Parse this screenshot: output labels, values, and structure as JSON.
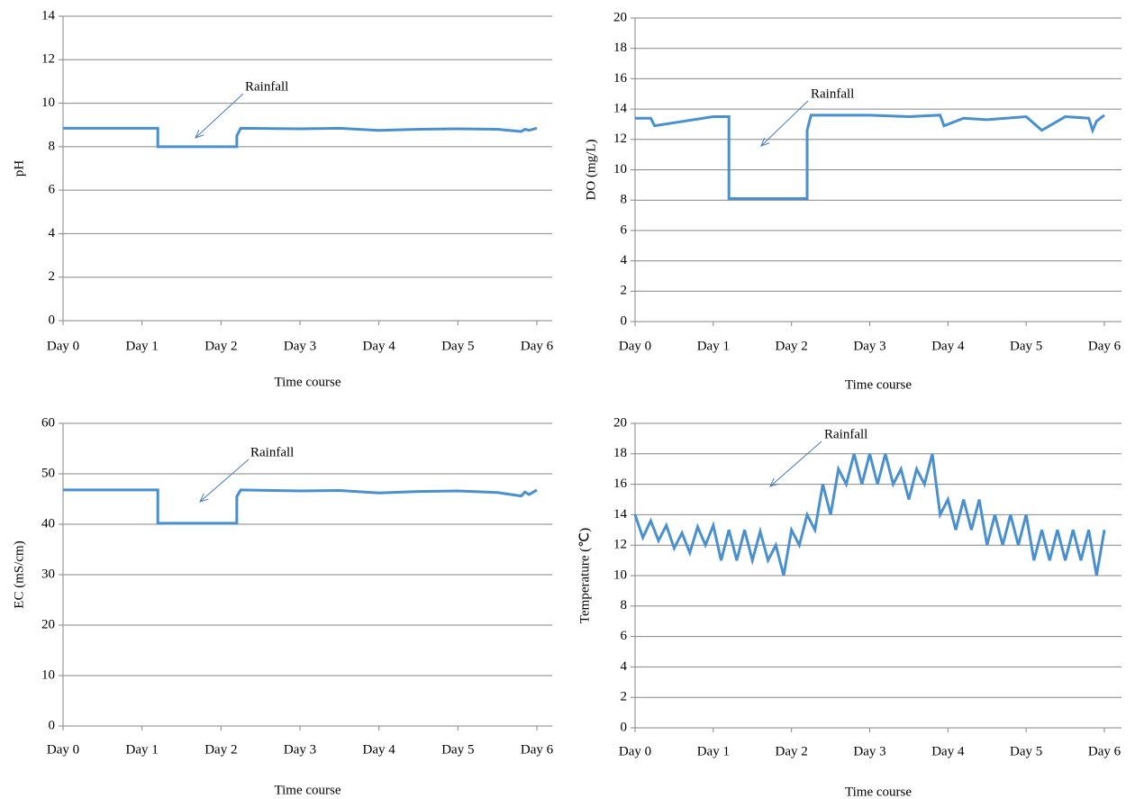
{
  "chart_data": [
    {
      "type": "line",
      "y_label": "pH",
      "x_label": "Time course",
      "annotation": "Rainfall",
      "color": "#4a90cf",
      "grid": true,
      "xlim": [
        0,
        6
      ],
      "xticks": [
        {
          "value": 0,
          "label": "Day 0"
        },
        {
          "value": 1,
          "label": "Day 1"
        },
        {
          "value": 2,
          "label": "Day 2"
        },
        {
          "value": 3,
          "label": "Day 3"
        },
        {
          "value": 4,
          "label": "Day 4"
        },
        {
          "value": 5,
          "label": "Day 5"
        },
        {
          "value": 6,
          "label": "Day 6"
        }
      ],
      "ylim": [
        0,
        14
      ],
      "yticks": [
        0,
        2,
        4,
        6,
        8,
        10,
        12,
        14
      ],
      "x": [
        0,
        0.5,
        1.2,
        1.2,
        2.2,
        2.2,
        2.25,
        3,
        3.5,
        4,
        4.5,
        5,
        5.5,
        5.8,
        5.85,
        5.9,
        6
      ],
      "values": [
        8.85,
        8.85,
        8.85,
        8.0,
        8.0,
        8.5,
        8.85,
        8.82,
        8.85,
        8.75,
        8.8,
        8.82,
        8.8,
        8.7,
        8.8,
        8.75,
        8.85
      ]
    },
    {
      "type": "line",
      "y_label": "DO (mg/L)",
      "x_label": "Time course",
      "annotation": "Rainfall",
      "color": "#4a90cf",
      "grid": true,
      "xlim": [
        0,
        6
      ],
      "xticks": [
        {
          "value": 0,
          "label": "Day 0"
        },
        {
          "value": 1,
          "label": "Day 1"
        },
        {
          "value": 2,
          "label": "Day 2"
        },
        {
          "value": 3,
          "label": "Day 3"
        },
        {
          "value": 4,
          "label": "Day 4"
        },
        {
          "value": 5,
          "label": "Day 5"
        },
        {
          "value": 6,
          "label": "Day 6"
        }
      ],
      "ylim": [
        0,
        20
      ],
      "yticks": [
        0,
        2,
        4,
        6,
        8,
        10,
        12,
        14,
        16,
        18,
        20
      ],
      "x": [
        0,
        0.2,
        0.25,
        1.0,
        1.2,
        1.2,
        2.2,
        2.2,
        2.25,
        3,
        3.5,
        3.9,
        3.95,
        4.2,
        4.5,
        5,
        5.2,
        5.5,
        5.8,
        5.85,
        5.9,
        6
      ],
      "values": [
        13.4,
        13.4,
        12.9,
        13.5,
        13.5,
        8.1,
        8.1,
        12.6,
        13.6,
        13.6,
        13.5,
        13.6,
        12.9,
        13.4,
        13.3,
        13.5,
        12.6,
        13.5,
        13.4,
        12.6,
        13.2,
        13.6
      ]
    },
    {
      "type": "line",
      "y_label": "EC (mS/cm)",
      "x_label": "Time course",
      "annotation": "Rainfall",
      "color": "#4a90cf",
      "grid": true,
      "xlim": [
        0,
        6
      ],
      "xticks": [
        {
          "value": 0,
          "label": "Day 0"
        },
        {
          "value": 1,
          "label": "Day 1"
        },
        {
          "value": 2,
          "label": "Day 2"
        },
        {
          "value": 3,
          "label": "Day 3"
        },
        {
          "value": 4,
          "label": "Day 4"
        },
        {
          "value": 5,
          "label": "Day 5"
        },
        {
          "value": 6,
          "label": "Day 6"
        }
      ],
      "ylim": [
        0,
        60
      ],
      "yticks": [
        0,
        10,
        20,
        30,
        40,
        50,
        60
      ],
      "x": [
        0,
        0.5,
        1.2,
        1.2,
        2.2,
        2.2,
        2.25,
        3,
        3.5,
        4,
        4.5,
        5,
        5.5,
        5.8,
        5.85,
        5.9,
        6
      ],
      "values": [
        46.8,
        46.8,
        46.8,
        40.2,
        40.2,
        45.5,
        46.8,
        46.6,
        46.7,
        46.2,
        46.5,
        46.6,
        46.3,
        45.6,
        46.4,
        45.9,
        46.8
      ]
    },
    {
      "type": "line",
      "y_label": "Temperature (℃)",
      "x_label": "Time course",
      "annotation": "Rainfall",
      "color": "#4a90cf",
      "grid": true,
      "xlim": [
        0,
        6
      ],
      "xticks": [
        {
          "value": 0,
          "label": "Day 0"
        },
        {
          "value": 1,
          "label": "Day 1"
        },
        {
          "value": 2,
          "label": "Day 2"
        },
        {
          "value": 3,
          "label": "Day 3"
        },
        {
          "value": 4,
          "label": "Day 4"
        },
        {
          "value": 5,
          "label": "Day 5"
        },
        {
          "value": 6,
          "label": "Day 6"
        }
      ],
      "ylim": [
        0,
        20
      ],
      "yticks": [
        0,
        2,
        4,
        6,
        8,
        10,
        12,
        14,
        16,
        18,
        20
      ],
      "x": [
        0,
        0.1,
        0.2,
        0.3,
        0.4,
        0.5,
        0.6,
        0.7,
        0.8,
        0.9,
        1.0,
        1.1,
        1.2,
        1.3,
        1.4,
        1.5,
        1.6,
        1.7,
        1.8,
        1.9,
        2.0,
        2.1,
        2.2,
        2.3,
        2.4,
        2.5,
        2.6,
        2.7,
        2.8,
        2.9,
        3.0,
        3.1,
        3.2,
        3.3,
        3.4,
        3.5,
        3.6,
        3.7,
        3.8,
        3.9,
        4.0,
        4.1,
        4.2,
        4.3,
        4.4,
        4.5,
        4.6,
        4.7,
        4.8,
        4.9,
        5.0,
        5.1,
        5.2,
        5.3,
        5.4,
        5.5,
        5.6,
        5.7,
        5.8,
        5.9,
        6.0
      ],
      "values": [
        14,
        12.5,
        13.6,
        12.3,
        13.3,
        11.8,
        12.8,
        11.5,
        13.2,
        12,
        13.3,
        11,
        13,
        11,
        13,
        11,
        12.9,
        11,
        12,
        10,
        13,
        12,
        14,
        13,
        16,
        14,
        17,
        16,
        18,
        16,
        18,
        16,
        18,
        16,
        17,
        15,
        17,
        16,
        18,
        14,
        15,
        13,
        15,
        13,
        15,
        12,
        14,
        12,
        14,
        12,
        14,
        11,
        13,
        11,
        13,
        11,
        13,
        11,
        13,
        10,
        13
      ]
    }
  ]
}
